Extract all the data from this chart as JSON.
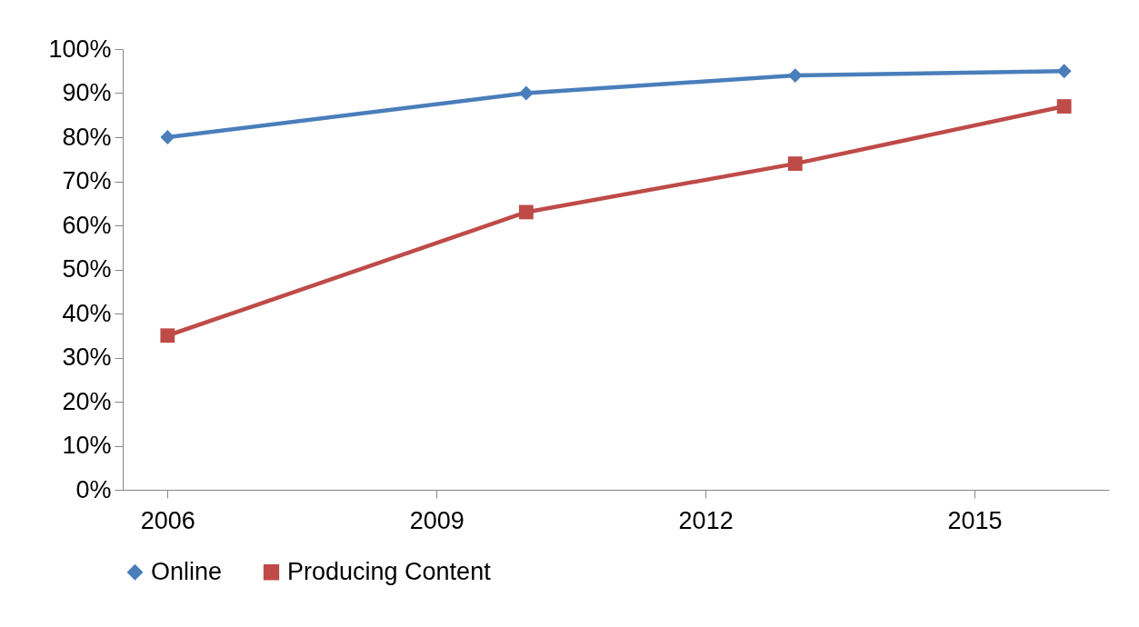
{
  "chart_data": {
    "type": "line",
    "x": [
      2006,
      2010,
      2013,
      2016
    ],
    "xlim": [
      2005.5,
      2016.5
    ],
    "xticks": [
      2006,
      2009,
      2012,
      2015
    ],
    "ylim": [
      0,
      100
    ],
    "yticks": [
      {
        "value": 0,
        "label": "0%"
      },
      {
        "value": 10,
        "label": "10%"
      },
      {
        "value": 20,
        "label": "20%"
      },
      {
        "value": 30,
        "label": "30%"
      },
      {
        "value": 40,
        "label": "40%"
      },
      {
        "value": 50,
        "label": "50%"
      },
      {
        "value": 60,
        "label": "60%"
      },
      {
        "value": 70,
        "label": "70%"
      },
      {
        "value": 80,
        "label": "80%"
      },
      {
        "value": 90,
        "label": "90%"
      },
      {
        "value": 100,
        "label": "100%"
      }
    ],
    "series": [
      {
        "name": "Online",
        "color": "#4a7ebb",
        "marker": "diamond",
        "values": [
          80,
          90,
          94,
          95
        ]
      },
      {
        "name": "Producing Content",
        "color": "#be4b48",
        "marker": "square",
        "values": [
          35,
          63,
          74,
          87
        ]
      }
    ],
    "legend": "bottom",
    "grid": false,
    "line_style": "solid"
  }
}
